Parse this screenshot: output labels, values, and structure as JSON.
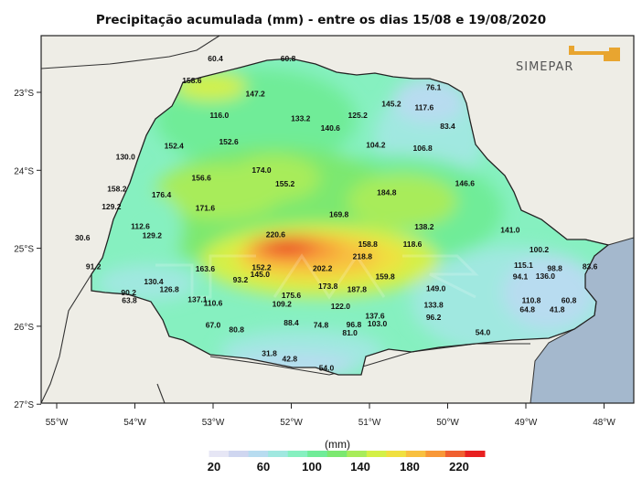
{
  "title": "Precipitação acumulada (mm) - entre os dias 15/08 e 19/08/2020",
  "logo": {
    "text": "SIMEPAR",
    "color": "#e8a530"
  },
  "lat_labels": [
    "23°S",
    "24°S",
    "25°S",
    "26°S",
    "27°S"
  ],
  "lon_labels": [
    "55°W",
    "54°W",
    "53°W",
    "52°W",
    "51°W",
    "50°W",
    "49°W",
    "48°W"
  ],
  "colorbar": {
    "unit_label": "(mm)",
    "tick_labels": [
      "20",
      "60",
      "100",
      "140",
      "180",
      "220"
    ],
    "colors": [
      "#ffffff",
      "#e6e6f5",
      "#cfd6f0",
      "#b8dcf0",
      "#a0e8e0",
      "#86f0c0",
      "#70ec98",
      "#7ce870",
      "#a8ec5a",
      "#d4f046",
      "#f0e040",
      "#f8c040",
      "#f89838",
      "#f06030",
      "#e82020"
    ]
  },
  "stations": [
    {
      "label": "60.4",
      "lon": -52.97,
      "lat": -22.6
    },
    {
      "label": "60.8",
      "lon": -52.04,
      "lat": -22.6
    },
    {
      "label": "158.6",
      "lon": -53.27,
      "lat": -22.88
    },
    {
      "label": "147.2",
      "lon": -52.46,
      "lat": -23.05
    },
    {
      "label": "76.1",
      "lon": -50.18,
      "lat": -22.97
    },
    {
      "label": "145.2",
      "lon": -50.72,
      "lat": -23.18
    },
    {
      "label": "117.6",
      "lon": -50.3,
      "lat": -23.23
    },
    {
      "label": "116.0",
      "lon": -52.92,
      "lat": -23.33
    },
    {
      "label": "133.2",
      "lon": -51.88,
      "lat": -23.37
    },
    {
      "label": "125.2",
      "lon": -51.15,
      "lat": -23.33
    },
    {
      "label": "140.6",
      "lon": -51.5,
      "lat": -23.49
    },
    {
      "label": "83.4",
      "lon": -50.0,
      "lat": -23.47
    },
    {
      "label": "152.4",
      "lon": -53.5,
      "lat": -23.72
    },
    {
      "label": "152.6",
      "lon": -52.8,
      "lat": -23.67
    },
    {
      "label": "104.2",
      "lon": -50.92,
      "lat": -23.71
    },
    {
      "label": "106.8",
      "lon": -50.32,
      "lat": -23.75
    },
    {
      "label": "130.0",
      "lon": -54.12,
      "lat": -23.86
    },
    {
      "label": "174.0",
      "lon": -52.38,
      "lat": -24.03
    },
    {
      "label": "156.6",
      "lon": -53.15,
      "lat": -24.13
    },
    {
      "label": "155.2",
      "lon": -52.08,
      "lat": -24.21
    },
    {
      "label": "146.6",
      "lon": -49.78,
      "lat": -24.2
    },
    {
      "label": "158.2",
      "lon": -54.23,
      "lat": -24.27
    },
    {
      "label": "176.4",
      "lon": -53.66,
      "lat": -24.35
    },
    {
      "label": "184.8",
      "lon": -50.78,
      "lat": -24.32
    },
    {
      "label": "129.2",
      "lon": -54.3,
      "lat": -24.5
    },
    {
      "label": "171.6",
      "lon": -53.1,
      "lat": -24.52
    },
    {
      "label": "169.8",
      "lon": -51.39,
      "lat": -24.6
    },
    {
      "label": "112.6",
      "lon": -53.93,
      "lat": -24.75
    },
    {
      "label": "138.2",
      "lon": -50.3,
      "lat": -24.76
    },
    {
      "label": "220.6",
      "lon": -52.2,
      "lat": -24.86
    },
    {
      "label": "129.2",
      "lon": -53.78,
      "lat": -24.87
    },
    {
      "label": "141.0",
      "lon": -49.2,
      "lat": -24.8
    },
    {
      "label": "30.6",
      "lon": -54.67,
      "lat": -24.9
    },
    {
      "label": "158.8",
      "lon": -51.02,
      "lat": -24.98
    },
    {
      "label": "118.6",
      "lon": -50.45,
      "lat": -24.98
    },
    {
      "label": "100.2",
      "lon": -48.83,
      "lat": -25.05
    },
    {
      "label": "218.8",
      "lon": -51.09,
      "lat": -25.14
    },
    {
      "label": "91.2",
      "lon": -54.53,
      "lat": -25.27
    },
    {
      "label": "163.6",
      "lon": -53.1,
      "lat": -25.3
    },
    {
      "label": "152.2",
      "lon": -52.38,
      "lat": -25.28
    },
    {
      "label": "202.2",
      "lon": -51.6,
      "lat": -25.29
    },
    {
      "label": "115.1",
      "lon": -49.03,
      "lat": -25.25
    },
    {
      "label": "98.8",
      "lon": -48.63,
      "lat": -25.29
    },
    {
      "label": "83.6",
      "lon": -48.18,
      "lat": -25.27
    },
    {
      "label": "145.0",
      "lon": -52.4,
      "lat": -25.37
    },
    {
      "label": "159.8",
      "lon": -50.8,
      "lat": -25.4
    },
    {
      "label": "94.1",
      "lon": -49.07,
      "lat": -25.4
    },
    {
      "label": "136.0",
      "lon": -48.75,
      "lat": -25.39
    },
    {
      "label": "130.4",
      "lon": -53.76,
      "lat": -25.46
    },
    {
      "label": "93.2",
      "lon": -52.65,
      "lat": -25.44
    },
    {
      "label": "173.8",
      "lon": -51.53,
      "lat": -25.52
    },
    {
      "label": "187.8",
      "lon": -51.16,
      "lat": -25.56
    },
    {
      "label": "149.0",
      "lon": -50.15,
      "lat": -25.55
    },
    {
      "label": "126.8",
      "lon": -53.56,
      "lat": -25.56
    },
    {
      "label": "90.2",
      "lon": -54.08,
      "lat": -25.6
    },
    {
      "label": "175.6",
      "lon": -52.0,
      "lat": -25.64
    },
    {
      "label": "137.1",
      "lon": -53.2,
      "lat": -25.69
    },
    {
      "label": "63.8",
      "lon": -54.07,
      "lat": -25.7
    },
    {
      "label": "110.6",
      "lon": -53.0,
      "lat": -25.74
    },
    {
      "label": "109.2",
      "lon": -52.12,
      "lat": -25.75
    },
    {
      "label": "122.0",
      "lon": -51.37,
      "lat": -25.78
    },
    {
      "label": "133.8",
      "lon": -50.18,
      "lat": -25.76
    },
    {
      "label": "110.8",
      "lon": -48.93,
      "lat": -25.7
    },
    {
      "label": "60.8",
      "lon": -48.45,
      "lat": -25.7
    },
    {
      "label": "64.8",
      "lon": -48.98,
      "lat": -25.82
    },
    {
      "label": "41.8",
      "lon": -48.6,
      "lat": -25.82
    },
    {
      "label": "137.6",
      "lon": -50.93,
      "lat": -25.9
    },
    {
      "label": "96.2",
      "lon": -50.18,
      "lat": -25.92
    },
    {
      "label": "67.0",
      "lon": -53.0,
      "lat": -26.02
    },
    {
      "label": "80.8",
      "lon": -52.7,
      "lat": -26.08
    },
    {
      "label": "88.4",
      "lon": -52.0,
      "lat": -25.99
    },
    {
      "label": "74.8",
      "lon": -51.62,
      "lat": -26.02
    },
    {
      "label": "96.8",
      "lon": -51.2,
      "lat": -26.01
    },
    {
      "label": "103.0",
      "lon": -50.9,
      "lat": -26.0
    },
    {
      "label": "81.0",
      "lon": -51.25,
      "lat": -26.12
    },
    {
      "label": "54.0",
      "lon": -49.55,
      "lat": -26.11
    },
    {
      "label": "31.8",
      "lon": -52.28,
      "lat": -26.38
    },
    {
      "label": "42.8",
      "lon": -52.02,
      "lat": -26.45
    },
    {
      "label": "54.0",
      "lon": -51.55,
      "lat": -26.57
    }
  ]
}
